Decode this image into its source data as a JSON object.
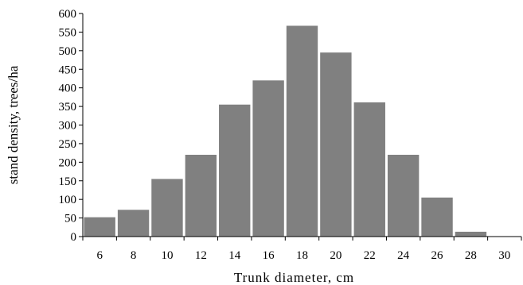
{
  "chart_data": {
    "type": "bar",
    "title": "",
    "xlabel": "Trunk diameter, cm",
    "ylabel": "stand density, trees/ha",
    "categories": [
      "6",
      "8",
      "10",
      "12",
      "14",
      "16",
      "18",
      "20",
      "22",
      "24",
      "26",
      "28",
      "30"
    ],
    "values": [
      52,
      72,
      155,
      220,
      355,
      420,
      567,
      495,
      361,
      220,
      105,
      13,
      0
    ],
    "ylim": [
      0,
      600
    ],
    "yticks": [
      0,
      50,
      100,
      150,
      200,
      250,
      300,
      350,
      400,
      450,
      500,
      550,
      600
    ],
    "grid": false,
    "legend": "none",
    "bar_color": "#808080"
  }
}
